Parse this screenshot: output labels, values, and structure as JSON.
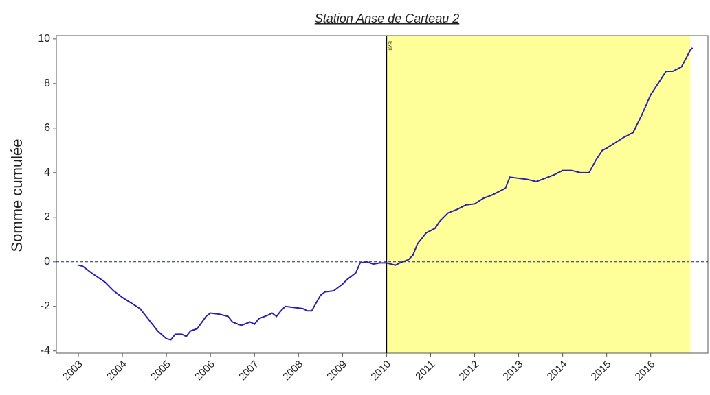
{
  "chart_data": {
    "type": "line",
    "title": "Station Anse de Carteau 2",
    "ylabel": "Somme cumulée",
    "annotation": "Eval",
    "xlim": [
      2002.5,
      2017.3
    ],
    "ylim": [
      -4.1,
      10.15
    ],
    "xticks": [
      2003,
      2004,
      2005,
      2006,
      2007,
      2008,
      2009,
      2010,
      2011,
      2012,
      2013,
      2014,
      2015,
      2016
    ],
    "yticks": [
      -4,
      -2,
      0,
      2,
      4,
      6,
      8,
      10
    ],
    "hline": 0,
    "vline": 2010,
    "shade": [
      2010,
      2016.9
    ],
    "shade_color": "#ffff99",
    "series": [
      {
        "color": "#2b1fb0",
        "x": [
          2003.0,
          2003.1,
          2003.3,
          2003.6,
          2003.8,
          2004.0,
          2004.2,
          2004.4,
          2004.6,
          2004.8,
          2005.0,
          2005.1,
          2005.2,
          2005.35,
          2005.45,
          2005.55,
          2005.7,
          2005.9,
          2006.0,
          2006.2,
          2006.4,
          2006.5,
          2006.7,
          2006.9,
          2007.0,
          2007.1,
          2007.3,
          2007.4,
          2007.5,
          2007.6,
          2007.7,
          2007.9,
          2008.1,
          2008.2,
          2008.3,
          2008.5,
          2008.6,
          2008.8,
          2009.0,
          2009.1,
          2009.3,
          2009.4,
          2009.55,
          2009.7,
          2009.85,
          2010.0,
          2010.2,
          2010.3,
          2010.5,
          2010.6,
          2010.7,
          2010.9,
          2011.1,
          2011.2,
          2011.4,
          2011.6,
          2011.8,
          2012.0,
          2012.2,
          2012.4,
          2012.6,
          2012.7,
          2012.8,
          2013.0,
          2013.2,
          2013.4,
          2013.6,
          2013.8,
          2014.0,
          2014.2,
          2014.4,
          2014.6,
          2014.75,
          2014.9,
          2015.0,
          2015.2,
          2015.4,
          2015.6,
          2015.8,
          2016.0,
          2016.2,
          2016.35,
          2016.5,
          2016.7,
          2016.9,
          2016.95
        ],
        "values": [
          -0.15,
          -0.2,
          -0.5,
          -0.9,
          -1.3,
          -1.6,
          -1.85,
          -2.1,
          -2.6,
          -3.1,
          -3.45,
          -3.5,
          -3.25,
          -3.25,
          -3.35,
          -3.1,
          -3.0,
          -2.45,
          -2.3,
          -2.35,
          -2.45,
          -2.7,
          -2.85,
          -2.7,
          -2.8,
          -2.55,
          -2.4,
          -2.3,
          -2.45,
          -2.2,
          -2.0,
          -2.05,
          -2.1,
          -2.2,
          -2.2,
          -1.5,
          -1.35,
          -1.3,
          -1.0,
          -0.8,
          -0.5,
          -0.05,
          0.0,
          -0.1,
          -0.05,
          -0.05,
          -0.15,
          -0.05,
          0.1,
          0.3,
          0.8,
          1.3,
          1.5,
          1.8,
          2.2,
          2.35,
          2.55,
          2.6,
          2.85,
          3.0,
          3.2,
          3.3,
          3.8,
          3.75,
          3.7,
          3.6,
          3.75,
          3.9,
          4.1,
          4.1,
          4.0,
          4.0,
          4.55,
          5.0,
          5.1,
          5.35,
          5.6,
          5.8,
          6.6,
          7.5,
          8.1,
          8.55,
          8.55,
          8.75,
          9.5,
          9.6
        ]
      }
    ]
  }
}
